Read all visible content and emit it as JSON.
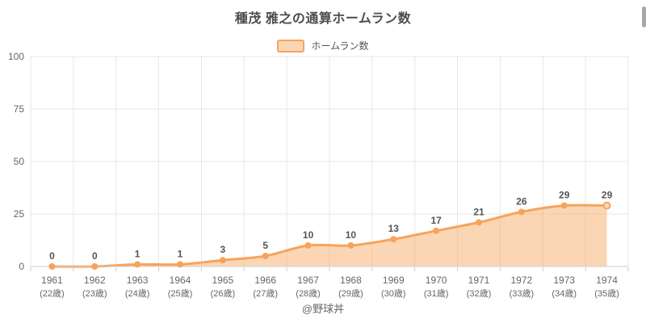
{
  "chart_data": {
    "type": "area",
    "smooth": true,
    "title": "種茂 雅之の通算ホームラン数",
    "legend": {
      "label": "ホームラン数",
      "position": "top"
    },
    "categories": [
      "1961",
      "1962",
      "1963",
      "1964",
      "1965",
      "1966",
      "1967",
      "1968",
      "1969",
      "1970",
      "1971",
      "1972",
      "1973",
      "1974"
    ],
    "category_sublabels": [
      "(22歳)",
      "(23歳)",
      "(24歳)",
      "(25歳)",
      "(26歳)",
      "(27歳)",
      "(28歳)",
      "(29歳)",
      "(30歳)",
      "(31歳)",
      "(32歳)",
      "(33歳)",
      "(34歳)",
      "(35歳)"
    ],
    "series": [
      {
        "name": "ホームラン数",
        "values": [
          0,
          0,
          1,
          1,
          3,
          5,
          10,
          10,
          13,
          17,
          21,
          26,
          29,
          29
        ]
      }
    ],
    "xlabel": "",
    "ylabel": "",
    "ylim": [
      0,
      100
    ],
    "yticks": [
      0,
      25,
      50,
      75,
      100
    ],
    "grid": true,
    "credit": "@野球丼",
    "colors": {
      "line": "#f7a35c",
      "area_fill": "rgba(247,163,92,0.45)",
      "marker_fill": "#f7a35c",
      "last_marker_fill": "#fcd9b3",
      "grid_line": "#e7e7e7",
      "axis_line": "#cccccc",
      "axis_label": "#666666",
      "data_label": "#555555",
      "title": "#4d4d4d",
      "legend_label": "#555555"
    }
  }
}
